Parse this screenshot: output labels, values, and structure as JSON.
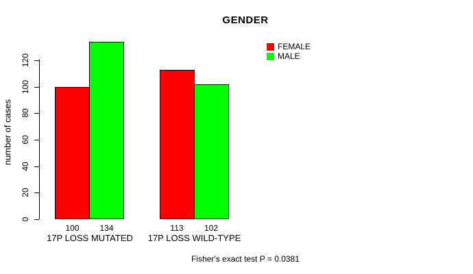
{
  "chart_data": {
    "type": "bar",
    "title": "GENDER",
    "ylabel": "number of cases",
    "xlabel": "",
    "categories": [
      "17P LOSS MUTATED",
      "17P LOSS WILD-TYPE"
    ],
    "series": [
      {
        "name": "FEMALE",
        "color": "#ff0000",
        "values": [
          100,
          113
        ]
      },
      {
        "name": "MALE",
        "color": "#00ff00",
        "values": [
          134,
          102
        ]
      }
    ],
    "ylim": [
      0,
      120
    ],
    "yticks": [
      0,
      20,
      40,
      60,
      80,
      100,
      120
    ],
    "bar_value_labels_shown": true,
    "grid": false,
    "legend_position": "upper-right",
    "bar_border_color": "#000000",
    "background_color": "#ffffff",
    "annotation": "Fisher's exact test P = 0.0381"
  }
}
